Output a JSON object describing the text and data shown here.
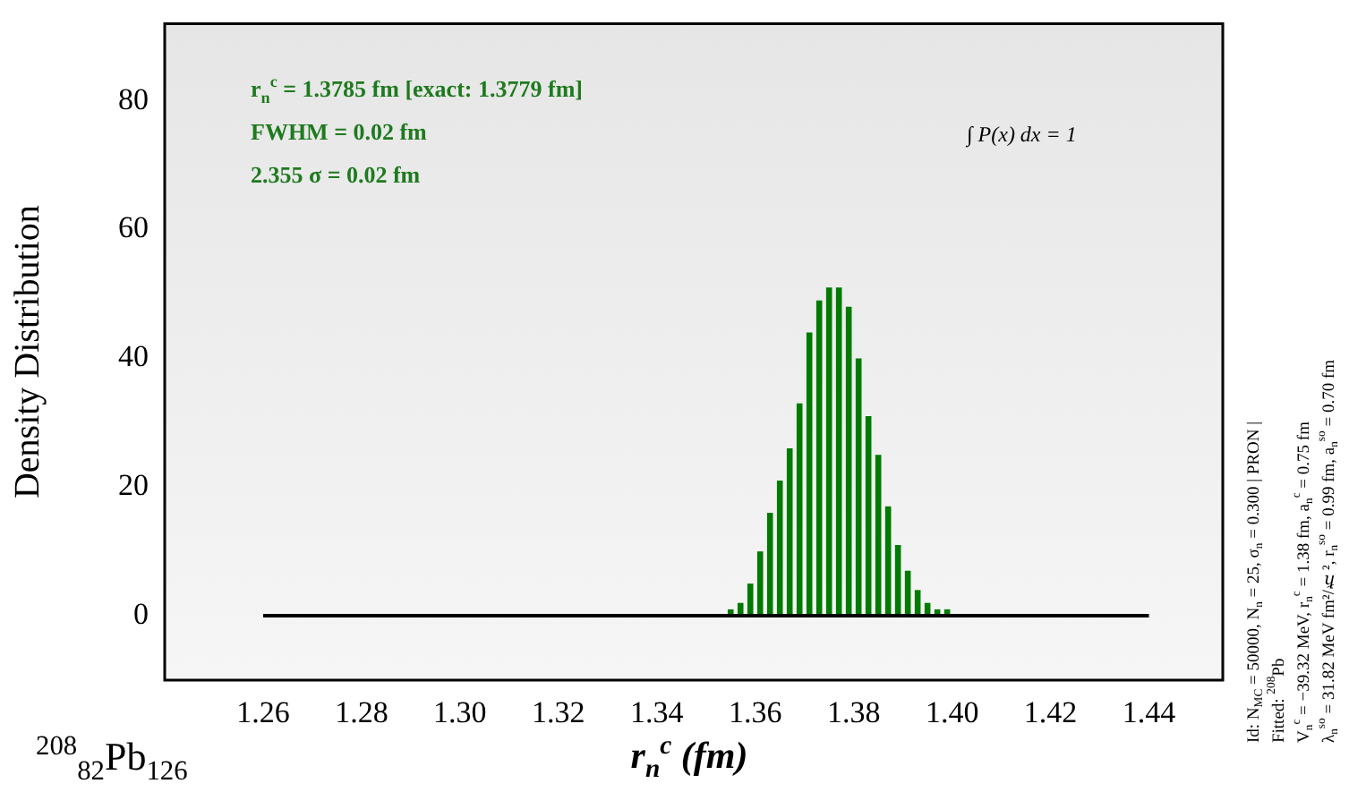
{
  "chart_data": {
    "type": "histogram",
    "xlabel": "r$_{n}$$^{c}$ (fm)",
    "ylabel": "Density Distribution",
    "annotations": [
      "r$_{n}$$^{c}$ = 1.3785 fm [exact: 1.3779 fm]",
      "FWHM = 0.02 fm",
      "2.355 σ  = 0.02 fm",
      "∫ P(x) dx = 1",
      "Id: N$_{MC}$ = 50000, N$_{n}$ = 25, σ$_{n}$ = 0.300 | PRON |",
      "Fitted: $^{208}$Pb",
      "V$_{n}$$^{c}$ = −39.32 MeV, r$_{n}$$^{c}$ = 1.38 fm, a$_{n}$$^{c}$ = 0.75 fm",
      "λ$_{n}$$^{so}$ = 31.82 MeV fm²/ℏ², r$_{n}$$^{so}$ = 0.99 fm, a$_{n}$$^{so}$ = 0.70 fm",
      "$^{208}$$_{82}$Pb$_{126}$"
    ],
    "bins": [
      1.26,
      1.262,
      1.264,
      1.266,
      1.268,
      1.27,
      1.272,
      1.274,
      1.276,
      1.278,
      1.28,
      1.282,
      1.284,
      1.286,
      1.288,
      1.29,
      1.292,
      1.294,
      1.296,
      1.298,
      1.3,
      1.302,
      1.304,
      1.306,
      1.308,
      1.31,
      1.312,
      1.314,
      1.316,
      1.318,
      1.32,
      1.322,
      1.324,
      1.326,
      1.328,
      1.33,
      1.332,
      1.334,
      1.336,
      1.338,
      1.34,
      1.342,
      1.344,
      1.346,
      1.348,
      1.35,
      1.352,
      1.354,
      1.356,
      1.358,
      1.36,
      1.362,
      1.364,
      1.366,
      1.368,
      1.37,
      1.372,
      1.374,
      1.376,
      1.378,
      1.38,
      1.382,
      1.384,
      1.386,
      1.388,
      1.39,
      1.392,
      1.394,
      1.396,
      1.398,
      1.4,
      1.402,
      1.404,
      1.406,
      1.408,
      1.41,
      1.412,
      1.414,
      1.416,
      1.418,
      1.42,
      1.422,
      1.424,
      1.426,
      1.428,
      1.43,
      1.432,
      1.434,
      1.436,
      1.438,
      1.44
    ],
    "values": [
      0,
      0,
      0,
      0,
      0,
      0,
      0,
      0,
      0,
      0,
      0,
      0,
      0,
      0,
      0,
      0,
      0,
      0,
      0,
      0,
      0,
      0,
      0,
      0,
      0,
      0,
      0,
      0,
      0,
      0,
      0,
      0,
      0,
      0,
      0,
      0,
      0,
      0,
      0,
      0,
      0,
      0,
      0,
      0,
      0,
      0,
      0,
      1,
      2,
      5,
      10,
      16,
      21,
      26,
      33,
      44,
      49,
      51,
      51,
      48,
      40,
      31,
      25,
      17,
      11,
      7,
      4,
      2,
      1,
      1,
      0,
      0,
      0,
      0,
      0,
      0,
      0,
      0,
      0,
      0,
      0,
      0,
      0,
      0,
      0,
      0,
      0,
      0,
      0,
      0
    ],
    "color": "#007a00",
    "xlim": [
      1.24,
      1.455
    ],
    "ylim": [
      -10,
      92
    ],
    "xticks": [
      1.26,
      1.28,
      {
        "value": 1.3,
        "label": "1.30"
      },
      1.32,
      1.34,
      1.36,
      1.38,
      {
        "value": 1.4,
        "label": "1.40"
      },
      1.42,
      1.44
    ],
    "yticks": [
      0,
      20,
      40,
      60,
      80
    ]
  }
}
